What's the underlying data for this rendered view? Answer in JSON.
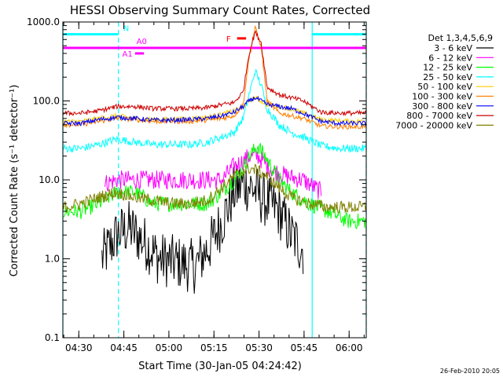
{
  "chart_data": {
    "type": "line",
    "title": "HESSI Observing Summary Count Rates, Corrected",
    "xlabel": "Start Time (30-Jan-05 04:24:42)",
    "ylabel": "Corrected Count Rate (s⁻¹ detector⁻¹)",
    "yscale": "log",
    "ylim": [
      0.1,
      1000
    ],
    "xlim_minutes": [
      0,
      101
    ],
    "x_tick_labels": [
      "04:30",
      "04:45",
      "05:00",
      "05:15",
      "05:30",
      "05:45",
      "06:00"
    ],
    "x_tick_minutes": [
      5.3,
      20.3,
      35.3,
      50.3,
      65.3,
      80.3,
      95.3
    ],
    "y_tick_labels": [
      "0.1",
      "1.0",
      "10.0",
      "100.0",
      "1000.0"
    ],
    "y_tick_values": [
      0.1,
      1,
      10,
      100,
      1000
    ],
    "legend_title": "Det 1,3,4,5,6,9",
    "legend_position": "right",
    "timestamp": "26-Feb-2010 20:05",
    "series": [
      {
        "name": "3 - 6 keV",
        "color": "#000000",
        "points": [
          [
            13,
            1
          ],
          [
            18,
            2
          ],
          [
            22,
            2.5
          ],
          [
            28,
            1.5
          ],
          [
            32,
            1
          ],
          [
            38,
            0.9
          ],
          [
            44,
            0.8
          ],
          [
            49,
            1.5
          ],
          [
            53,
            3
          ],
          [
            57,
            7
          ],
          [
            60,
            9
          ],
          [
            63,
            8
          ],
          [
            66,
            6
          ],
          [
            69,
            5
          ],
          [
            72,
            4
          ],
          [
            76,
            2
          ],
          [
            80,
            1.3
          ]
        ]
      },
      {
        "name": "6 - 12 keV",
        "color": "#ff00ff",
        "points": [
          [
            14,
            9
          ],
          [
            18,
            10
          ],
          [
            24,
            10
          ],
          [
            30,
            10
          ],
          [
            36,
            10
          ],
          [
            42,
            10
          ],
          [
            48,
            10
          ],
          [
            53,
            10
          ],
          [
            57,
            15
          ],
          [
            60,
            17
          ],
          [
            62,
            20
          ],
          [
            65,
            20
          ],
          [
            68,
            15
          ],
          [
            72,
            12
          ],
          [
            75,
            11
          ],
          [
            80,
            10
          ],
          [
            86,
            7
          ]
        ]
      },
      {
        "name": "12 - 25 keV",
        "color": "#00ff00",
        "points": [
          [
            0,
            4
          ],
          [
            6,
            4
          ],
          [
            12,
            5
          ],
          [
            18,
            7
          ],
          [
            24,
            7
          ],
          [
            30,
            5
          ],
          [
            36,
            5
          ],
          [
            42,
            5
          ],
          [
            48,
            5
          ],
          [
            53,
            7
          ],
          [
            57,
            10
          ],
          [
            60,
            14
          ],
          [
            62,
            20
          ],
          [
            65,
            27
          ],
          [
            68,
            18
          ],
          [
            72,
            10
          ],
          [
            76,
            7
          ],
          [
            82,
            5
          ],
          [
            88,
            4
          ],
          [
            95,
            3
          ],
          [
            101,
            3
          ]
        ]
      },
      {
        "name": "25 - 50 keV",
        "color": "#00ffff",
        "points": [
          [
            0,
            25
          ],
          [
            6,
            25
          ],
          [
            12,
            28
          ],
          [
            18,
            33
          ],
          [
            24,
            30
          ],
          [
            30,
            28
          ],
          [
            36,
            28
          ],
          [
            42,
            28
          ],
          [
            48,
            30
          ],
          [
            53,
            35
          ],
          [
            57,
            40
          ],
          [
            60,
            60
          ],
          [
            62,
            120
          ],
          [
            64,
            240
          ],
          [
            66,
            160
          ],
          [
            68,
            80
          ],
          [
            72,
            50
          ],
          [
            76,
            40
          ],
          [
            80,
            35
          ],
          [
            86,
            27
          ],
          [
            92,
            25
          ],
          [
            101,
            25
          ]
        ]
      },
      {
        "name": "50 - 100 keV",
        "color": "#ffcc00",
        "points": [
          [
            0,
            55
          ],
          [
            6,
            55
          ],
          [
            12,
            60
          ],
          [
            18,
            65
          ],
          [
            24,
            60
          ],
          [
            30,
            58
          ],
          [
            36,
            58
          ],
          [
            42,
            60
          ],
          [
            48,
            62
          ],
          [
            53,
            68
          ],
          [
            57,
            75
          ],
          [
            60,
            85
          ],
          [
            62,
            100
          ],
          [
            64,
            110
          ],
          [
            66,
            100
          ],
          [
            68,
            90
          ],
          [
            72,
            85
          ],
          [
            76,
            80
          ],
          [
            80,
            70
          ],
          [
            86,
            58
          ],
          [
            92,
            56
          ],
          [
            101,
            55
          ]
        ]
      },
      {
        "name": "100 - 300 keV",
        "color": "#ff8000",
        "points": [
          [
            0,
            50
          ],
          [
            6,
            50
          ],
          [
            12,
            55
          ],
          [
            18,
            60
          ],
          [
            24,
            58
          ],
          [
            30,
            55
          ],
          [
            36,
            55
          ],
          [
            42,
            55
          ],
          [
            48,
            57
          ],
          [
            53,
            60
          ],
          [
            57,
            65
          ],
          [
            60,
            90
          ],
          [
            62,
            350
          ],
          [
            64,
            850
          ],
          [
            66,
            500
          ],
          [
            68,
            100
          ],
          [
            72,
            70
          ],
          [
            76,
            65
          ],
          [
            80,
            60
          ],
          [
            86,
            48
          ],
          [
            92,
            47
          ],
          [
            101,
            47
          ]
        ]
      },
      {
        "name": "300 - 800 keV",
        "color": "#0000ff",
        "points": [
          [
            0,
            52
          ],
          [
            6,
            52
          ],
          [
            12,
            58
          ],
          [
            18,
            62
          ],
          [
            24,
            60
          ],
          [
            30,
            57
          ],
          [
            36,
            57
          ],
          [
            42,
            58
          ],
          [
            48,
            60
          ],
          [
            53,
            65
          ],
          [
            57,
            72
          ],
          [
            60,
            85
          ],
          [
            62,
            100
          ],
          [
            64,
            110
          ],
          [
            66,
            100
          ],
          [
            68,
            90
          ],
          [
            72,
            85
          ],
          [
            76,
            80
          ],
          [
            80,
            70
          ],
          [
            86,
            55
          ],
          [
            92,
            52
          ],
          [
            101,
            52
          ]
        ]
      },
      {
        "name": "800 - 7000 keV",
        "color": "#cc0000",
        "points": [
          [
            0,
            70
          ],
          [
            6,
            70
          ],
          [
            12,
            75
          ],
          [
            18,
            85
          ],
          [
            24,
            85
          ],
          [
            30,
            80
          ],
          [
            36,
            80
          ],
          [
            42,
            80
          ],
          [
            48,
            82
          ],
          [
            53,
            90
          ],
          [
            57,
            95
          ],
          [
            60,
            130
          ],
          [
            62,
            400
          ],
          [
            64,
            750
          ],
          [
            66,
            550
          ],
          [
            68,
            150
          ],
          [
            72,
            120
          ],
          [
            76,
            110
          ],
          [
            80,
            100
          ],
          [
            86,
            72
          ],
          [
            92,
            70
          ],
          [
            101,
            70
          ]
        ]
      },
      {
        "name": "7000 - 20000 keV",
        "color": "#808000",
        "points": [
          [
            0,
            4.5
          ],
          [
            6,
            5
          ],
          [
            12,
            6
          ],
          [
            18,
            7
          ],
          [
            24,
            6
          ],
          [
            30,
            5.5
          ],
          [
            36,
            5
          ],
          [
            42,
            5
          ],
          [
            48,
            5.5
          ],
          [
            53,
            8
          ],
          [
            57,
            11
          ],
          [
            60,
            13
          ],
          [
            62,
            14
          ],
          [
            65,
            13
          ],
          [
            68,
            11
          ],
          [
            72,
            8
          ],
          [
            76,
            6
          ],
          [
            82,
            5
          ],
          [
            88,
            4.5
          ],
          [
            95,
            4.5
          ],
          [
            101,
            4.5
          ]
        ]
      }
    ],
    "annotations": {
      "bars": [
        {
          "label": "N",
          "color": "#00ffff",
          "segments": [
            [
              0,
              18.5
            ],
            [
              83,
              101
            ]
          ],
          "value": 700
        },
        {
          "label": "F",
          "color": "#ff0000",
          "segments": [
            [
              58,
              61
            ]
          ],
          "value": 620
        },
        {
          "label": "A0",
          "color": "#ff00ff",
          "segments": [
            [
              0,
              101
            ]
          ],
          "value": 470
        },
        {
          "label": "A1",
          "color": "#ff00ff",
          "segments": [
            [
              24,
              27
            ]
          ],
          "value": 400
        }
      ],
      "vertical_lines": [
        {
          "minute": 0,
          "style": "solid",
          "color": "#00ffff"
        },
        {
          "minute": 18.5,
          "style": "dashed",
          "color": "#00ffff"
        },
        {
          "minute": 83,
          "style": "solid",
          "color": "#00ffff"
        },
        {
          "minute": 101,
          "style": "dashed",
          "color": "#00ffff"
        }
      ]
    }
  }
}
